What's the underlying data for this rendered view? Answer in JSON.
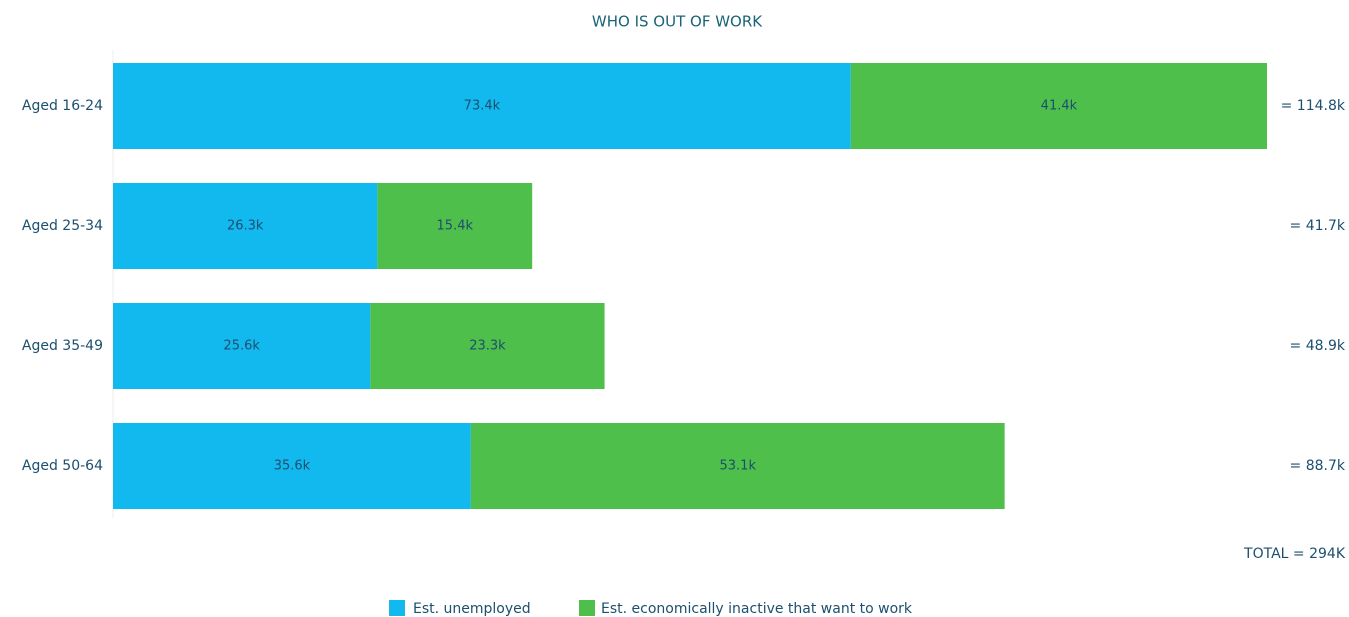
{
  "chart_data": {
    "type": "stacked-bar-horizontal",
    "title": "WHO IS OUT OF WORK",
    "categories": [
      "Aged 16-24",
      "Aged 25-34",
      "Aged 35-49",
      "Aged 50-64"
    ],
    "series": [
      {
        "name": "Est. unemployed",
        "color": "#12b9ee",
        "values": [
          73.4,
          26.3,
          25.6,
          35.6
        ],
        "value_labels": [
          "73.4k",
          "26.3k",
          "25.6k",
          "35.6k"
        ]
      },
      {
        "name": "Est. economically inactive that want to work",
        "color": "#4ebf4a",
        "values": [
          41.4,
          15.4,
          23.3,
          53.1
        ],
        "value_labels": [
          "41.4k",
          "15.4k",
          "23.3k",
          "53.1k"
        ]
      }
    ],
    "annotations": [
      "= 114.8k",
      "= 41.7k",
      "= 48.9k",
      "= 88.7k"
    ],
    "total": "TOTAL = 294K"
  }
}
